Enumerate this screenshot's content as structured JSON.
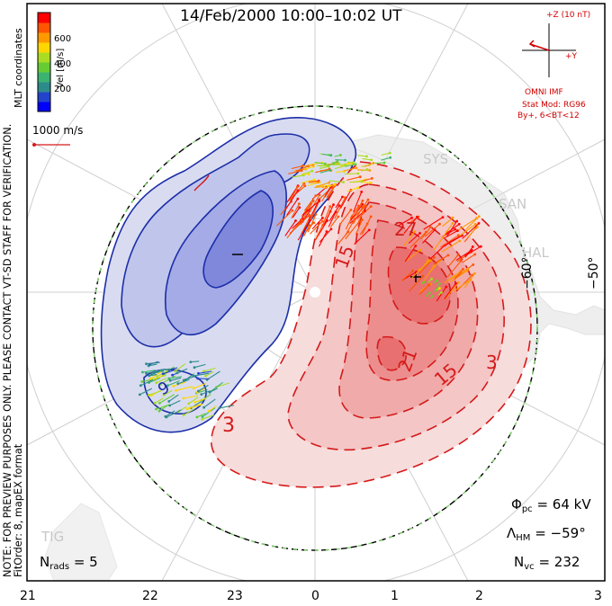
{
  "title": "14/Feb/2000 10:00–10:02 UT",
  "left_notes": {
    "mlt_coords": "MLT coordinates",
    "preview_note": "NOTE: FOR PREVIEW PURPOSES ONLY. PLEASE CONTACT VT-SD STAFF FOR VERIFICATION.",
    "fit_order": "FitOrder: 8, mapEX format"
  },
  "colorbar": {
    "label": "Vel [m/s]",
    "ticks": [
      "600",
      "400",
      "200"
    ],
    "colors": [
      "#0000ff",
      "#2244cc",
      "#2e8b8b",
      "#3cb371",
      "#66cc33",
      "#aadd22",
      "#ffd700",
      "#ff9900",
      "#ff5500",
      "#ff0000"
    ]
  },
  "vector_scale": {
    "label": "1000 m/s"
  },
  "imf": {
    "axis_z": "+Z (10 nT)",
    "axis_y": "+Y",
    "source": "OMNI IMF",
    "model": "Stat Mod: RG96",
    "condition": "By+, 6<BT<12"
  },
  "contour_labels": [
    "−",
    "+",
    "9",
    "3",
    "3",
    "15",
    "15",
    "21",
    "27",
    "3"
  ],
  "stations": [
    "SAN",
    "HAL",
    "TIG",
    "SYS"
  ],
  "latitude_labels": [
    "−60°",
    "−50°"
  ],
  "stats": {
    "phi_pc_sym": "Φ",
    "phi_pc_sub": "pc",
    "phi_pc_value": "= 64 kV",
    "lambda_hm_sym": "Λ",
    "lambda_hm_sub": "HM",
    "lambda_hm_value": "= −59°",
    "n_vc_sym": "N",
    "n_vc_sub": "vc",
    "n_vc_value": "= 232",
    "n_rads_sym": "N",
    "n_rads_sub": "rads",
    "n_rads_value": "= 5"
  },
  "mlt_ticks": [
    "21",
    "22",
    "23",
    "0",
    "1",
    "2",
    "3"
  ]
}
